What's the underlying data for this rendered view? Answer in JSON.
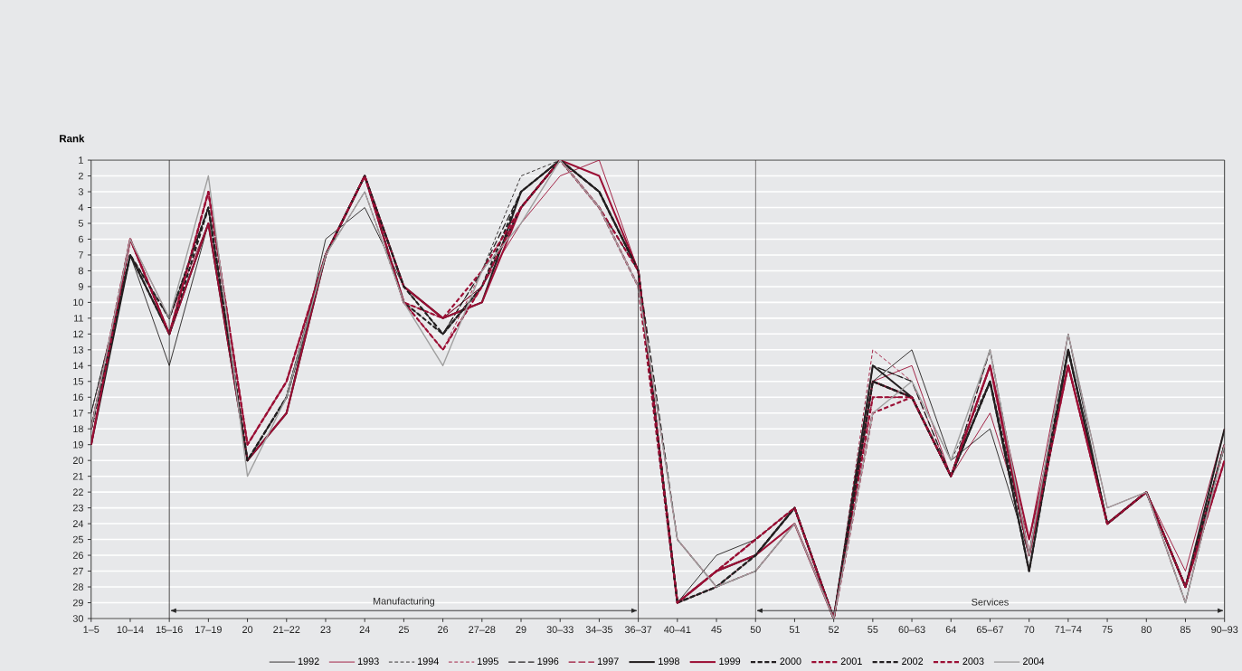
{
  "chart_data": {
    "type": "line",
    "ylabel": "Rank",
    "categories": [
      "1–5",
      "10–14",
      "15–16",
      "17–19",
      "20",
      "21–22",
      "23",
      "24",
      "25",
      "26",
      "27–28",
      "29",
      "30–33",
      "34–35",
      "36–37",
      "40–41",
      "45",
      "50",
      "51",
      "52",
      "55",
      "60–63",
      "64",
      "65–67",
      "70",
      "71–74",
      "75",
      "80",
      "85",
      "90–93"
    ],
    "ylim": [
      30,
      1
    ],
    "yticks": [
      1,
      2,
      3,
      4,
      5,
      6,
      7,
      8,
      9,
      10,
      11,
      12,
      13,
      14,
      15,
      16,
      17,
      18,
      19,
      20,
      21,
      22,
      23,
      24,
      25,
      26,
      27,
      28,
      29,
      30
    ],
    "grid": "y",
    "legend": "bottom",
    "marker": "none",
    "ref_lines": [
      {
        "axis": "x",
        "value": "15–16",
        "color": "#231f20"
      },
      {
        "axis": "x",
        "value": "36–37",
        "color": "#231f20"
      },
      {
        "axis": "x",
        "value": "50",
        "color": "#231f20"
      }
    ],
    "annotations": [
      "Manufacturing",
      "Services"
    ],
    "series": [
      {
        "name": "1992",
        "color": "#231f20",
        "line_style": "solid",
        "values": [
          17,
          7,
          14,
          5,
          20,
          17,
          6,
          4,
          9,
          11,
          9,
          4,
          1,
          3,
          8,
          29,
          26,
          25,
          23,
          30,
          15,
          13,
          20,
          18,
          26,
          12,
          24,
          22,
          28,
          19
        ]
      },
      {
        "name": "1993",
        "color": "#9b0f35",
        "line_style": "solid",
        "values": [
          19,
          6,
          11,
          5,
          20,
          17,
          7,
          2,
          10,
          11,
          9,
          5,
          2,
          1,
          8,
          29,
          28,
          26,
          24,
          30,
          15,
          14,
          21,
          17,
          25,
          12,
          23,
          22,
          27,
          18
        ]
      },
      {
        "name": "1994",
        "color": "#231f20",
        "line_style": "dashed",
        "values": [
          17,
          7,
          11,
          4,
          20,
          16,
          7,
          3,
          10,
          12,
          8,
          2,
          1,
          3,
          8,
          29,
          27,
          25,
          23,
          30,
          14,
          15,
          20,
          15,
          26,
          13,
          24,
          22,
          28,
          19
        ]
      },
      {
        "name": "1995",
        "color": "#9b0f35",
        "line_style": "dashed",
        "values": [
          18,
          6,
          12,
          3,
          19,
          15,
          7,
          3,
          10,
          13,
          8,
          4,
          1,
          2,
          8,
          29,
          27,
          25,
          23,
          30,
          13,
          15,
          21,
          13,
          26,
          14,
          24,
          22,
          28,
          19
        ]
      },
      {
        "name": "1996",
        "color": "#231f20",
        "line_style": "dashed",
        "values": [
          18,
          7,
          11,
          4,
          20,
          16,
          7,
          2,
          9,
          12,
          8,
          3,
          1,
          4,
          8,
          25,
          28,
          27,
          24,
          30,
          14,
          15,
          21,
          13,
          26,
          13,
          24,
          22,
          29,
          19
        ]
      },
      {
        "name": "1997",
        "color": "#9b0f35",
        "line_style": "dashed",
        "values": [
          18,
          6,
          12,
          3,
          19,
          15,
          7,
          2,
          10,
          13,
          9,
          4,
          1,
          4,
          9,
          25,
          28,
          27,
          24,
          30,
          16,
          16,
          21,
          14,
          26,
          14,
          24,
          22,
          29,
          19
        ]
      },
      {
        "name": "1998",
        "color": "#231f20",
        "line_style": "solid",
        "values": [
          19,
          7,
          12,
          5,
          20,
          17,
          7,
          2,
          9,
          11,
          10,
          3,
          1,
          3,
          8,
          29,
          27,
          26,
          23,
          30,
          14,
          16,
          21,
          15,
          27,
          13,
          24,
          22,
          28,
          18
        ]
      },
      {
        "name": "1999",
        "color": "#9b0f35",
        "line_style": "solid",
        "values": [
          19,
          6,
          12,
          5,
          20,
          17,
          7,
          2,
          9,
          11,
          10,
          4,
          1,
          2,
          8,
          29,
          27,
          26,
          24,
          30,
          15,
          16,
          21,
          14,
          25,
          14,
          24,
          22,
          28,
          20
        ]
      },
      {
        "name": "2000",
        "color": "#231f20",
        "line_style": "dashed",
        "values": [
          18,
          7,
          12,
          4,
          20,
          16,
          7,
          2,
          10,
          12,
          9,
          3,
          1,
          3,
          8,
          29,
          28,
          26,
          23,
          30,
          15,
          16,
          21,
          15,
          26,
          13,
          24,
          22,
          28,
          19
        ]
      },
      {
        "name": "2001",
        "color": "#9b0f35",
        "line_style": "dashed",
        "values": [
          18,
          6,
          12,
          3,
          19,
          15,
          7,
          2,
          10,
          11,
          8,
          4,
          1,
          4,
          9,
          29,
          27,
          25,
          23,
          30,
          16,
          16,
          21,
          14,
          26,
          14,
          24,
          22,
          28,
          19
        ]
      },
      {
        "name": "2002",
        "color": "#231f20",
        "line_style": "dashed",
        "values": [
          18,
          7,
          11,
          4,
          20,
          16,
          7,
          2,
          9,
          12,
          9,
          4,
          1,
          3,
          8,
          29,
          28,
          26,
          23,
          30,
          15,
          16,
          21,
          15,
          27,
          13,
          24,
          22,
          28,
          19
        ]
      },
      {
        "name": "2003",
        "color": "#9b0f35",
        "line_style": "dashed",
        "values": [
          19,
          6,
          12,
          3,
          19,
          15,
          7,
          2,
          10,
          13,
          9,
          4,
          1,
          4,
          8,
          29,
          27,
          25,
          23,
          30,
          17,
          16,
          21,
          14,
          26,
          14,
          24,
          22,
          28,
          20
        ]
      },
      {
        "name": "2004",
        "color": "#a0a0a0",
        "line_style": "solid",
        "values": [
          18,
          6,
          11,
          2,
          21,
          16,
          7,
          3,
          10,
          14,
          8,
          5,
          1,
          4,
          9,
          25,
          28,
          27,
          24,
          30,
          17,
          15,
          20,
          13,
          26,
          12,
          23,
          22,
          29,
          19
        ]
      }
    ]
  }
}
